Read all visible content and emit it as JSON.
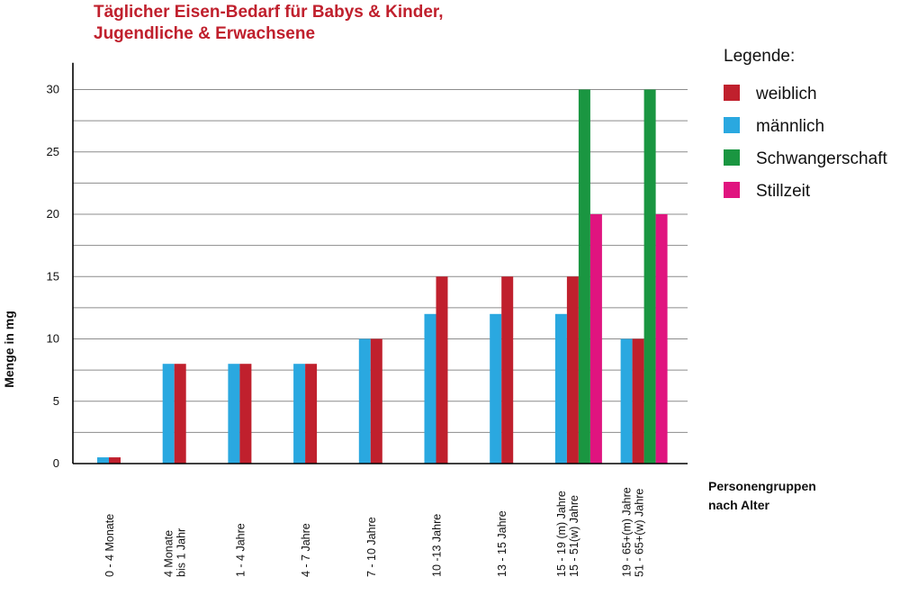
{
  "chart_data": {
    "type": "bar",
    "title_lines": [
      "Täglicher Eisen-Bedarf für Babys & Kinder,",
      "Jugendliche & Erwachsene"
    ],
    "ylabel": "Menge in mg",
    "xlabel_lines": [
      "Personengruppen",
      "nach Alter"
    ],
    "ylim": [
      0,
      32
    ],
    "yticks": [
      0,
      5,
      10,
      15,
      20,
      25,
      30
    ],
    "grid": true,
    "legend_title": "Legende:",
    "legend_position": "right",
    "categories": [
      [
        "0 - 4 Monate"
      ],
      [
        "4 Monate",
        "bis 1 Jahr"
      ],
      [
        "1 - 4 Jahre"
      ],
      [
        "4 - 7 Jahre"
      ],
      [
        "7 - 10 Jahre"
      ],
      [
        "10 -13 Jahre"
      ],
      [
        "13 - 15 Jahre"
      ],
      [
        "15 - 19 (m) Jahre",
        "15 - 51(w) Jahre"
      ],
      [
        "19 - 65+(m) Jahre",
        "51 - 65+(w) Jahre"
      ]
    ],
    "series": [
      {
        "name": "weiblich",
        "color": "#c0202d",
        "values": [
          0.5,
          8,
          8,
          8,
          10,
          15,
          15,
          15,
          10
        ]
      },
      {
        "name": "männlich",
        "color": "#2aa8e0",
        "values": [
          0.5,
          8,
          8,
          8,
          10,
          12,
          12,
          12,
          10
        ]
      },
      {
        "name": "Schwangerschaft",
        "color": "#1a9641",
        "values": [
          null,
          null,
          null,
          null,
          null,
          null,
          null,
          30,
          30
        ]
      },
      {
        "name": "Stillzeit",
        "color": "#e0147f",
        "values": [
          null,
          null,
          null,
          null,
          null,
          null,
          null,
          20,
          20
        ]
      }
    ]
  }
}
